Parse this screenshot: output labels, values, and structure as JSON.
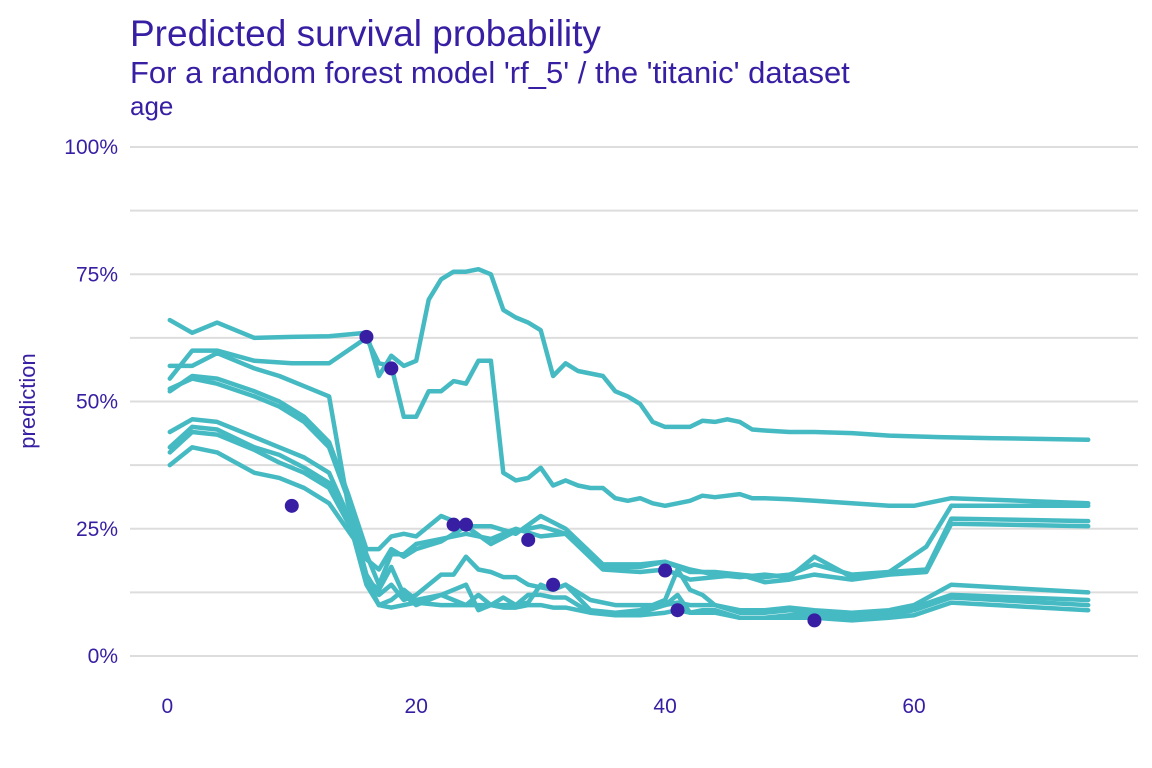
{
  "colors": {
    "text": "#371ea3",
    "grid": "#dddddd",
    "line": "#46bac2",
    "point": "#371ea3"
  },
  "chart_data": {
    "type": "line",
    "title": "Predicted survival probability",
    "subtitle": "For a random forest model 'rf_5' / the 'titanic' dataset",
    "facet_label": "age",
    "xlabel": "",
    "ylabel": "prediction",
    "xlim": [
      -3,
      78
    ],
    "ylim": [
      0,
      1
    ],
    "x_ticks": [
      0,
      20,
      40,
      60
    ],
    "y_ticks": [
      0,
      0.25,
      0.5,
      0.75,
      1.0
    ],
    "y_tick_labels": [
      "0%",
      "25%",
      "50%",
      "75%",
      "100%"
    ],
    "grid": true,
    "legend": "none",
    "series": [
      {
        "x": [
          0.2,
          2,
          4,
          7,
          10,
          13,
          16,
          17,
          18,
          19,
          20,
          21,
          22,
          23,
          24,
          25,
          26,
          27,
          28,
          29,
          30,
          31,
          32,
          33,
          34,
          35,
          36,
          37,
          38,
          39,
          40,
          41,
          42,
          43,
          44,
          45,
          46,
          47,
          48,
          50,
          52,
          55,
          58,
          62,
          66,
          74
        ],
        "y": [
          0.66,
          0.635,
          0.655,
          0.625,
          0.627,
          0.628,
          0.635,
          0.55,
          0.59,
          0.57,
          0.58,
          0.7,
          0.74,
          0.755,
          0.755,
          0.76,
          0.75,
          0.68,
          0.665,
          0.655,
          0.64,
          0.55,
          0.575,
          0.56,
          0.555,
          0.55,
          0.52,
          0.51,
          0.495,
          0.46,
          0.45,
          0.45,
          0.45,
          0.462,
          0.46,
          0.465,
          0.46,
          0.445,
          0.443,
          0.44,
          0.44,
          0.438,
          0.433,
          0.43,
          0.428,
          0.425
        ]
      },
      {
        "x": [
          0.2,
          2,
          4,
          7,
          10,
          13,
          16,
          17,
          18,
          19,
          20,
          21,
          22,
          23,
          24,
          25,
          26,
          27,
          28,
          29,
          30,
          31,
          32,
          33,
          34,
          35,
          36,
          37,
          38,
          39,
          40,
          41,
          42,
          43,
          44,
          45,
          46,
          47,
          48,
          50,
          52,
          55,
          58,
          60,
          63,
          74
        ],
        "y": [
          0.545,
          0.6,
          0.6,
          0.58,
          0.575,
          0.575,
          0.625,
          0.575,
          0.57,
          0.47,
          0.47,
          0.52,
          0.52,
          0.54,
          0.535,
          0.58,
          0.58,
          0.36,
          0.345,
          0.35,
          0.37,
          0.335,
          0.345,
          0.335,
          0.33,
          0.33,
          0.31,
          0.305,
          0.31,
          0.3,
          0.295,
          0.3,
          0.305,
          0.315,
          0.312,
          0.315,
          0.318,
          0.31,
          0.31,
          0.308,
          0.305,
          0.3,
          0.295,
          0.295,
          0.31,
          0.3
        ]
      },
      {
        "x": [
          0.2,
          2,
          4,
          7,
          9,
          11,
          13,
          14.5,
          16,
          17,
          18,
          19,
          20,
          22,
          24,
          26,
          28,
          30,
          32,
          35,
          38,
          40,
          42,
          44,
          46,
          48,
          50,
          52,
          55,
          58,
          61,
          63,
          74
        ],
        "y": [
          0.57,
          0.57,
          0.595,
          0.565,
          0.55,
          0.53,
          0.51,
          0.3,
          0.19,
          0.17,
          0.21,
          0.195,
          0.21,
          0.225,
          0.255,
          0.22,
          0.245,
          0.255,
          0.24,
          0.175,
          0.175,
          0.185,
          0.17,
          0.16,
          0.155,
          0.16,
          0.155,
          0.195,
          0.155,
          0.165,
          0.215,
          0.295,
          0.295
        ]
      },
      {
        "x": [
          0.2,
          2,
          4,
          7,
          9,
          11,
          13,
          14.5,
          16,
          17,
          18,
          19,
          20,
          22,
          24,
          26,
          28,
          30,
          32,
          35,
          38,
          40,
          42,
          44,
          46,
          48,
          50,
          52,
          55,
          58,
          61,
          63,
          74
        ],
        "y": [
          0.52,
          0.55,
          0.545,
          0.52,
          0.5,
          0.47,
          0.42,
          0.32,
          0.21,
          0.21,
          0.235,
          0.24,
          0.235,
          0.275,
          0.255,
          0.255,
          0.24,
          0.275,
          0.25,
          0.18,
          0.18,
          0.185,
          0.165,
          0.165,
          0.16,
          0.155,
          0.16,
          0.18,
          0.16,
          0.165,
          0.17,
          0.27,
          0.265
        ]
      },
      {
        "x": [
          0.2,
          2,
          4,
          7,
          9,
          11,
          13,
          14.5,
          16,
          17,
          18,
          19,
          20,
          22,
          24,
          26,
          28,
          30,
          32,
          35,
          38,
          40,
          42,
          44,
          46,
          48,
          50,
          52,
          55,
          58,
          61,
          63,
          74
        ],
        "y": [
          0.525,
          0.545,
          0.535,
          0.51,
          0.49,
          0.46,
          0.41,
          0.31,
          0.2,
          0.14,
          0.2,
          0.2,
          0.22,
          0.23,
          0.24,
          0.23,
          0.25,
          0.235,
          0.24,
          0.17,
          0.165,
          0.17,
          0.15,
          0.155,
          0.16,
          0.145,
          0.15,
          0.16,
          0.15,
          0.16,
          0.165,
          0.26,
          0.255
        ]
      },
      {
        "x": [
          0.2,
          2,
          4,
          7,
          9,
          11,
          13,
          15,
          16,
          17,
          18,
          19,
          20,
          22,
          23,
          24,
          25,
          26,
          27,
          28,
          29,
          30,
          31,
          32,
          34,
          36,
          38,
          40,
          41,
          42,
          43,
          44,
          46,
          48,
          50,
          52,
          55,
          58,
          60,
          63,
          74
        ],
        "y": [
          0.44,
          0.465,
          0.46,
          0.43,
          0.41,
          0.39,
          0.36,
          0.25,
          0.15,
          0.1,
          0.11,
          0.13,
          0.11,
          0.12,
          0.11,
          0.1,
          0.12,
          0.1,
          0.115,
          0.1,
          0.105,
          0.14,
          0.13,
          0.14,
          0.09,
          0.085,
          0.09,
          0.11,
          0.17,
          0.13,
          0.12,
          0.1,
          0.09,
          0.09,
          0.095,
          0.09,
          0.085,
          0.09,
          0.1,
          0.14,
          0.125
        ]
      },
      {
        "x": [
          0.2,
          2,
          4,
          7,
          9,
          11,
          13,
          15,
          16,
          17,
          18,
          19,
          20,
          22,
          23,
          24,
          25,
          26,
          27,
          28,
          29,
          30,
          31,
          32,
          34,
          36,
          38,
          40,
          41,
          42,
          43,
          44,
          46,
          48,
          50,
          52,
          55,
          58,
          60,
          63,
          74
        ],
        "y": [
          0.41,
          0.45,
          0.445,
          0.41,
          0.395,
          0.37,
          0.34,
          0.25,
          0.16,
          0.12,
          0.14,
          0.11,
          0.12,
          0.16,
          0.16,
          0.195,
          0.17,
          0.165,
          0.155,
          0.155,
          0.14,
          0.135,
          0.13,
          0.14,
          0.11,
          0.1,
          0.1,
          0.1,
          0.105,
          0.1,
          0.1,
          0.1,
          0.085,
          0.085,
          0.09,
          0.085,
          0.08,
          0.085,
          0.095,
          0.12,
          0.11
        ]
      },
      {
        "x": [
          0.2,
          2,
          4,
          7,
          9,
          11,
          13,
          15,
          16,
          17,
          18,
          19,
          20,
          22,
          23,
          24,
          25,
          26,
          27,
          28,
          29,
          30,
          31,
          32,
          34,
          36,
          38,
          40,
          41,
          42,
          43,
          44,
          46,
          48,
          50,
          52,
          55,
          58,
          60,
          63,
          74
        ],
        "y": [
          0.4,
          0.44,
          0.435,
          0.405,
          0.38,
          0.36,
          0.33,
          0.24,
          0.15,
          0.13,
          0.175,
          0.12,
          0.1,
          0.12,
          0.13,
          0.14,
          0.09,
          0.1,
          0.1,
          0.1,
          0.12,
          0.12,
          0.115,
          0.115,
          0.085,
          0.085,
          0.085,
          0.1,
          0.12,
          0.085,
          0.09,
          0.09,
          0.075,
          0.075,
          0.08,
          0.08,
          0.075,
          0.08,
          0.09,
          0.115,
          0.1
        ]
      },
      {
        "x": [
          0.2,
          2,
          4,
          7,
          9,
          11,
          13,
          15,
          16,
          17,
          18,
          19,
          20,
          22,
          23,
          24,
          25,
          26,
          27,
          28,
          29,
          30,
          31,
          32,
          34,
          36,
          38,
          40,
          41,
          42,
          43,
          44,
          46,
          48,
          50,
          52,
          55,
          58,
          60,
          63,
          74
        ],
        "y": [
          0.375,
          0.41,
          0.4,
          0.36,
          0.35,
          0.33,
          0.3,
          0.23,
          0.14,
          0.1,
          0.095,
          0.1,
          0.105,
          0.1,
          0.1,
          0.1,
          0.1,
          0.1,
          0.095,
          0.095,
          0.1,
          0.1,
          0.095,
          0.095,
          0.085,
          0.08,
          0.08,
          0.085,
          0.09,
          0.085,
          0.085,
          0.085,
          0.075,
          0.075,
          0.075,
          0.075,
          0.07,
          0.075,
          0.08,
          0.105,
          0.09
        ]
      }
    ],
    "points": {
      "x": [
        10,
        16,
        18,
        23,
        24,
        29,
        31,
        40,
        41,
        52
      ],
      "y": [
        0.295,
        0.627,
        0.565,
        0.258,
        0.258,
        0.228,
        0.14,
        0.168,
        0.09,
        0.07
      ]
    }
  }
}
